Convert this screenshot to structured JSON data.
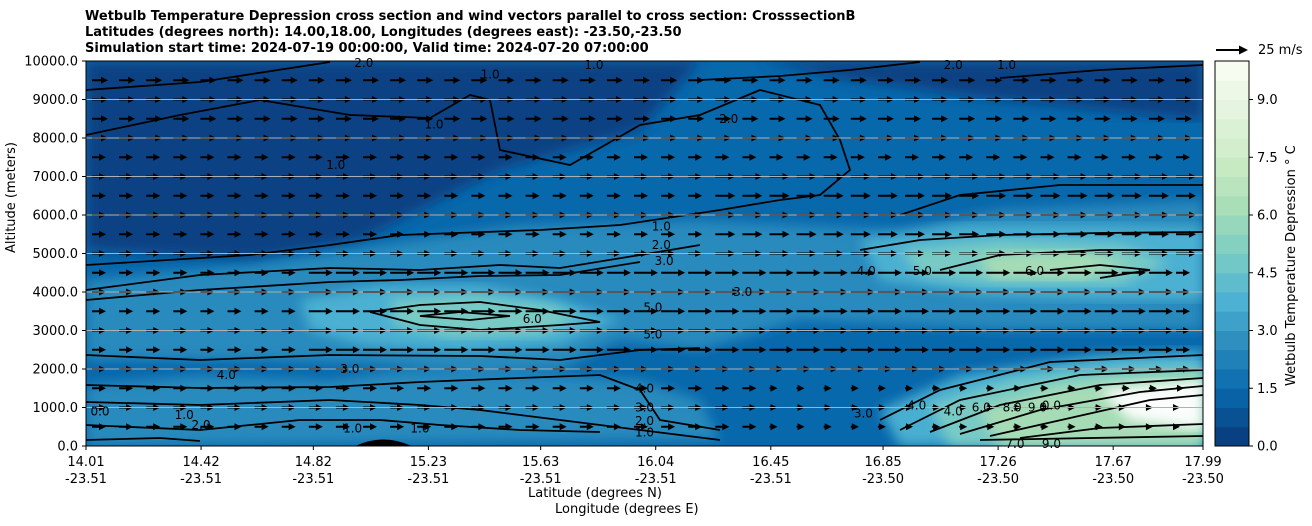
{
  "title_lines": [
    "Wetbulb Temperature Depression cross section and wind vectors parallel to cross section: CrosssectionB",
    "Latitudes (degrees north): 14.00,18.00, Longitudes (degrees east): -23.50,-23.50",
    "Simulation start time: 2024-07-19 00:00:00, Valid time: 2024-07-20 07:00:00"
  ],
  "chart_data": {
    "type": "heatmap",
    "title": "Wetbulb Temperature Depression cross section and wind vectors parallel to cross section: CrosssectionB",
    "ylabel": "Altitude (meters)",
    "xlabel_lines": [
      "Latitude (degrees N)",
      "Longitude (degrees E)"
    ],
    "ylim": [
      0,
      10000
    ],
    "yticks": [
      "0.0",
      "1000.0",
      "2000.0",
      "3000.0",
      "4000.0",
      "5000.0",
      "6000.0",
      "7000.0",
      "8000.0",
      "9000.0",
      "10000.0"
    ],
    "xticks": [
      {
        "lat": "14.01",
        "lon": "-23.51"
      },
      {
        "lat": "14.42",
        "lon": "-23.51"
      },
      {
        "lat": "14.82",
        "lon": "-23.51"
      },
      {
        "lat": "15.23",
        "lon": "-23.51"
      },
      {
        "lat": "15.63",
        "lon": "-23.51"
      },
      {
        "lat": "16.04",
        "lon": "-23.51"
      },
      {
        "lat": "16.45",
        "lon": "-23.51"
      },
      {
        "lat": "16.85",
        "lon": "-23.50"
      },
      {
        "lat": "17.26",
        "lon": "-23.50"
      },
      {
        "lat": "17.67",
        "lon": "-23.50"
      },
      {
        "lat": "17.99",
        "lon": "-23.50"
      }
    ],
    "horizontal_grid": true,
    "colorbar": {
      "label": "Wetbulb Temperature Depression ° C",
      "range": [
        0,
        10
      ],
      "ticks": [
        "0.0",
        "1.5",
        "3.0",
        "4.5",
        "6.0",
        "7.5",
        "9.0"
      ],
      "colormap": "GnBu_r"
    },
    "contour_labels": [
      {
        "text": "1.0",
        "lat": 15.45,
        "alt": 9650
      },
      {
        "text": "1.0",
        "lat": 15.25,
        "alt": 8350
      },
      {
        "text": "1.0",
        "lat": 14.9,
        "alt": 7300
      },
      {
        "text": "2.0",
        "lat": 15.0,
        "alt": 9950
      },
      {
        "text": "1.0",
        "lat": 15.82,
        "alt": 9900
      },
      {
        "text": "2.0",
        "lat": 16.3,
        "alt": 8500
      },
      {
        "text": "2.0",
        "lat": 17.1,
        "alt": 9900
      },
      {
        "text": "1.0",
        "lat": 17.29,
        "alt": 9900
      },
      {
        "text": "1.0",
        "lat": 16.06,
        "alt": 5700
      },
      {
        "text": "2.0",
        "lat": 16.06,
        "alt": 5220
      },
      {
        "text": "3.0",
        "lat": 16.07,
        "alt": 4800
      },
      {
        "text": "3.0",
        "lat": 16.35,
        "alt": 4000
      },
      {
        "text": "4.0",
        "lat": 16.79,
        "alt": 4550
      },
      {
        "text": "5.0",
        "lat": 16.99,
        "alt": 4550
      },
      {
        "text": "6.0",
        "lat": 17.39,
        "alt": 4550
      },
      {
        "text": "5.0",
        "lat": 16.03,
        "alt": 3600
      },
      {
        "text": "5.0",
        "lat": 16.03,
        "alt": 2900
      },
      {
        "text": "6.0",
        "lat": 15.6,
        "alt": 3300
      },
      {
        "text": "4.0",
        "lat": 14.51,
        "alt": 1850
      },
      {
        "text": "3.0",
        "lat": 14.95,
        "alt": 2000
      },
      {
        "text": "4.0",
        "lat": 16.0,
        "alt": 1500
      },
      {
        "text": "3.0",
        "lat": 16.0,
        "alt": 1000
      },
      {
        "text": "2.0",
        "lat": 16.0,
        "alt": 650
      },
      {
        "text": "1.0",
        "lat": 16.0,
        "alt": 350
      },
      {
        "text": "1.0",
        "lat": 14.36,
        "alt": 800
      },
      {
        "text": "0.0",
        "lat": 14.06,
        "alt": 900
      },
      {
        "text": "2.0",
        "lat": 14.42,
        "alt": 550
      },
      {
        "text": "1.0",
        "lat": 14.96,
        "alt": 450
      },
      {
        "text": "1.0",
        "lat": 15.2,
        "alt": 450
      },
      {
        "text": "3.0",
        "lat": 16.78,
        "alt": 850
      },
      {
        "text": "4.0",
        "lat": 16.97,
        "alt": 1050
      },
      {
        "text": "4.0",
        "lat": 17.1,
        "alt": 900
      },
      {
        "text": "6.0",
        "lat": 17.2,
        "alt": 1000
      },
      {
        "text": "8.0",
        "lat": 17.31,
        "alt": 1000
      },
      {
        "text": "9.0",
        "lat": 17.4,
        "alt": 1000
      },
      {
        "text": "0.0",
        "lat": 17.45,
        "alt": 1050
      },
      {
        "text": "7.0",
        "lat": 17.32,
        "alt": 50
      },
      {
        "text": "9.0",
        "lat": 17.45,
        "alt": 50
      }
    ],
    "wind_vectors": {
      "direction": "parallel to cross section (eastward/rightward)",
      "reference_label": "25 m/s",
      "reference_speed": 25
    }
  }
}
